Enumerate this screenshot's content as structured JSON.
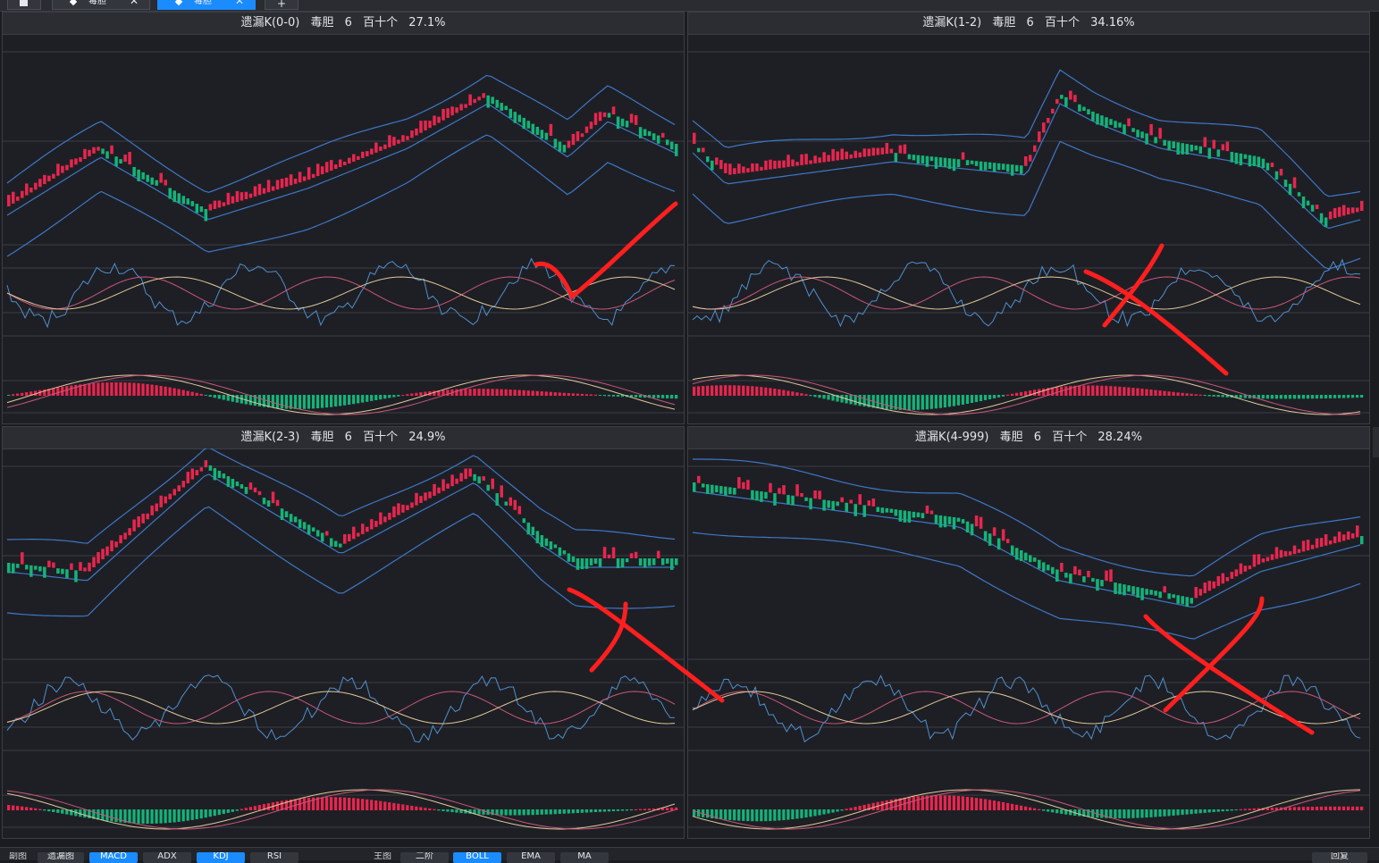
{
  "tabs": [
    {
      "label": "",
      "icon": "home-icon",
      "active": false
    },
    {
      "label": "毒胆",
      "icon": "diamond-icon",
      "active": false
    },
    {
      "label": "毒胆",
      "icon": "diamond-icon",
      "active": true
    },
    {
      "label": "+",
      "icon": "plus-icon",
      "active": false
    }
  ],
  "panels": [
    {
      "title_name": "遗漏K(0-0)",
      "strategy": "毒胆",
      "count": "6",
      "scope": "百十个",
      "rate": "27.1%"
    },
    {
      "title_name": "遗漏K(1-2)",
      "strategy": "毒胆",
      "count": "6",
      "scope": "百十个",
      "rate": "34.16%"
    },
    {
      "title_name": "遗漏K(2-3)",
      "strategy": "毒胆",
      "count": "6",
      "scope": "百十个",
      "rate": "24.9%"
    },
    {
      "title_name": "遗漏K(4-999)",
      "strategy": "毒胆",
      "count": "6",
      "scope": "百十个",
      "rate": "28.24%"
    }
  ],
  "bottom": {
    "sub_label": "副图",
    "sub_items": [
      "遗漏图",
      "MACD",
      "ADX",
      "KDJ",
      "RSI"
    ],
    "sub_active": [
      "MACD",
      "KDJ"
    ],
    "main_label": "主图",
    "main_items": [
      "二阶",
      "BOLL",
      "EMA",
      "MA"
    ],
    "main_active": [
      "BOLL"
    ],
    "right_button": "回复"
  },
  "colors": {
    "up": "#e8264f",
    "down": "#14b37a",
    "band": "#3d78c8",
    "annotation": "#ff1f1f"
  },
  "annotations": [
    "check-mark",
    "x-mark",
    "x-mark",
    "x-mark"
  ]
}
